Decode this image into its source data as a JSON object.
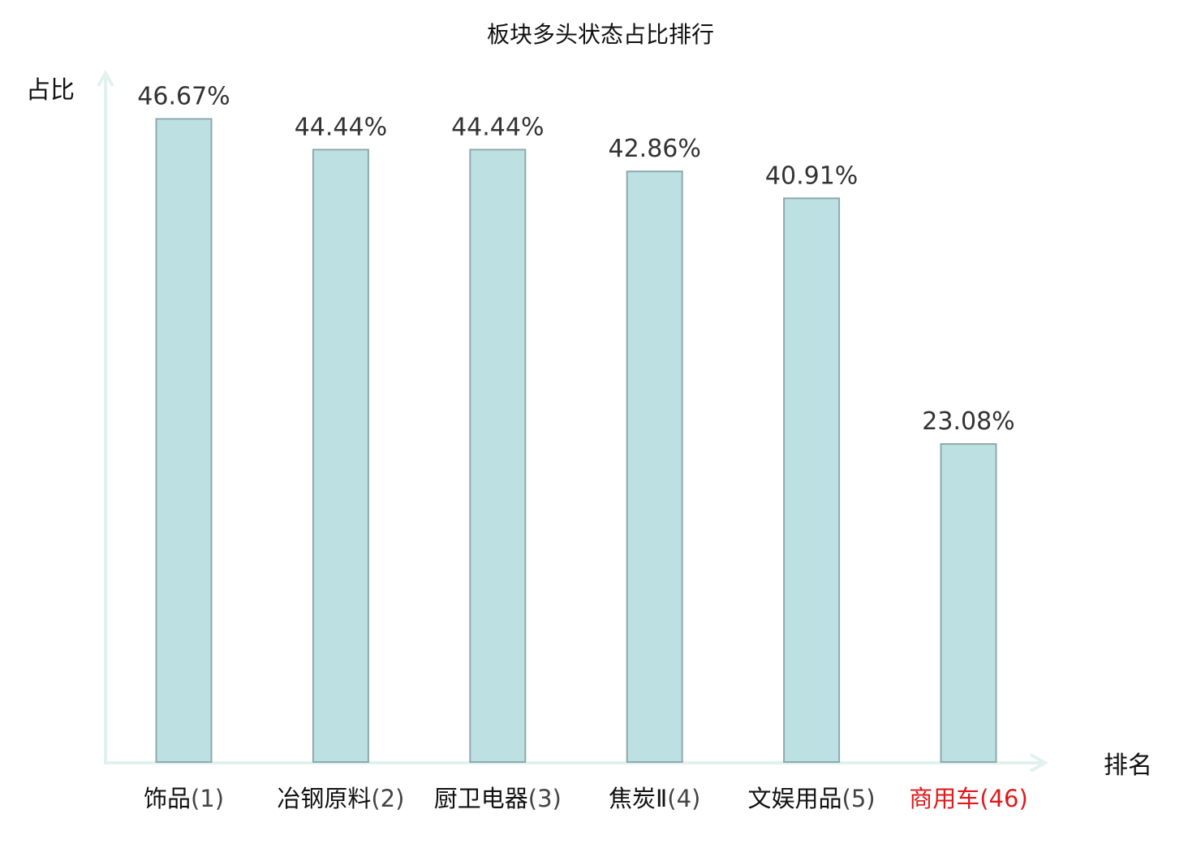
{
  "chart_data": {
    "type": "bar",
    "title": "板块多头状态占比排行",
    "ylabel": "占比",
    "xlabel": "排名",
    "ylim": [
      0,
      50
    ],
    "grid": false,
    "categories": [
      "饰品",
      "冶钢原料",
      "厨卫电器",
      "焦炭Ⅱ",
      "文娱用品",
      "商用车"
    ],
    "ranks": [
      "(1)",
      "(2)",
      "(3)",
      "(4)",
      "(5)",
      "(46)"
    ],
    "values": [
      46.67,
      44.44,
      44.44,
      42.86,
      40.91,
      23.08
    ],
    "value_labels": [
      "46.67%",
      "44.44%",
      "44.44%",
      "42.86%",
      "40.91%",
      "23.08%"
    ],
    "highlight_index": 5,
    "colors": {
      "bar_fill": "#bde0e3",
      "bar_stroke": "#8fa9ab",
      "axis": "#e0f2ef",
      "text": "#111111",
      "rank_text": "#444444",
      "value_text": "#333333",
      "highlight": "#e0191b"
    }
  }
}
